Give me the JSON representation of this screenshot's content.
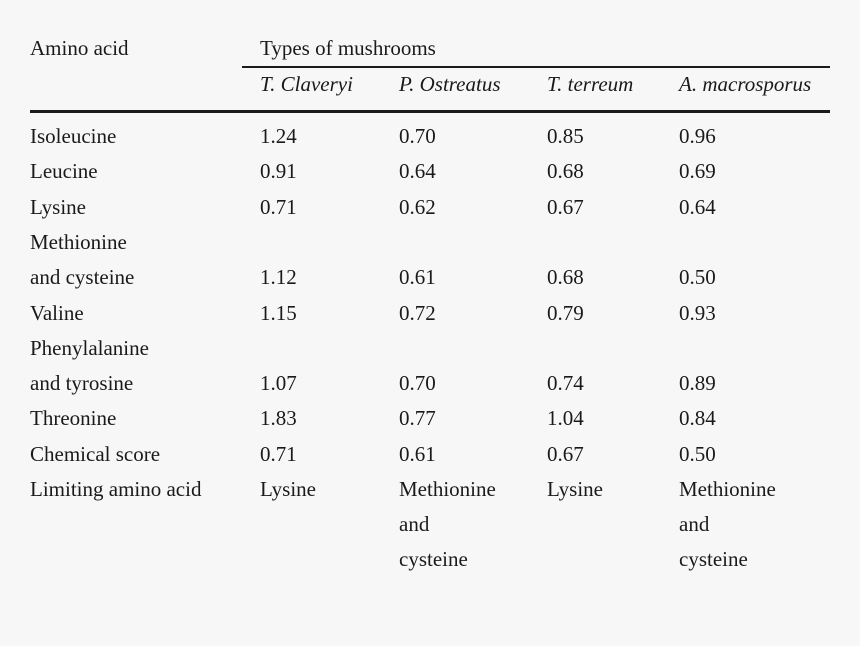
{
  "table": {
    "header": {
      "row_label": "Amino acid",
      "group_label": "Types of mushrooms",
      "columns": [
        "T. Claveryi",
        "P. Ostreatus",
        "T. terreum",
        "A. macrosporus"
      ]
    },
    "rows": [
      {
        "label": [
          "Isoleucine"
        ],
        "values": [
          "1.24",
          "0.70",
          "0.85",
          "0.96"
        ]
      },
      {
        "label": [
          "Leucine"
        ],
        "values": [
          "0.91",
          "0.64",
          "0.68",
          "0.69"
        ]
      },
      {
        "label": [
          "Lysine"
        ],
        "values": [
          "0.71",
          "0.62",
          "0.67",
          "0.64"
        ]
      },
      {
        "label": [
          "Methionine",
          "and cysteine"
        ],
        "values": [
          "1.12",
          "0.61",
          "0.68",
          "0.50"
        ]
      },
      {
        "label": [
          "Valine"
        ],
        "values": [
          "1.15",
          "0.72",
          "0.79",
          "0.93"
        ]
      },
      {
        "label": [
          "Phenylalanine",
          "and tyrosine"
        ],
        "values": [
          "1.07",
          "0.70",
          "0.74",
          "0.89"
        ]
      },
      {
        "label": [
          "Threonine"
        ],
        "values": [
          "1.83",
          "0.77",
          "1.04",
          "0.84"
        ]
      },
      {
        "label": [
          "Chemical score"
        ],
        "values": [
          "0.71",
          "0.61",
          "0.67",
          "0.50"
        ]
      }
    ],
    "limiting": {
      "label": "Limiting amino acid",
      "values": [
        [
          "Lysine"
        ],
        [
          "Methionine",
          "and",
          "cysteine"
        ],
        [
          "Lysine"
        ],
        [
          "Methionine",
          "and",
          "cysteine"
        ]
      ]
    }
  }
}
